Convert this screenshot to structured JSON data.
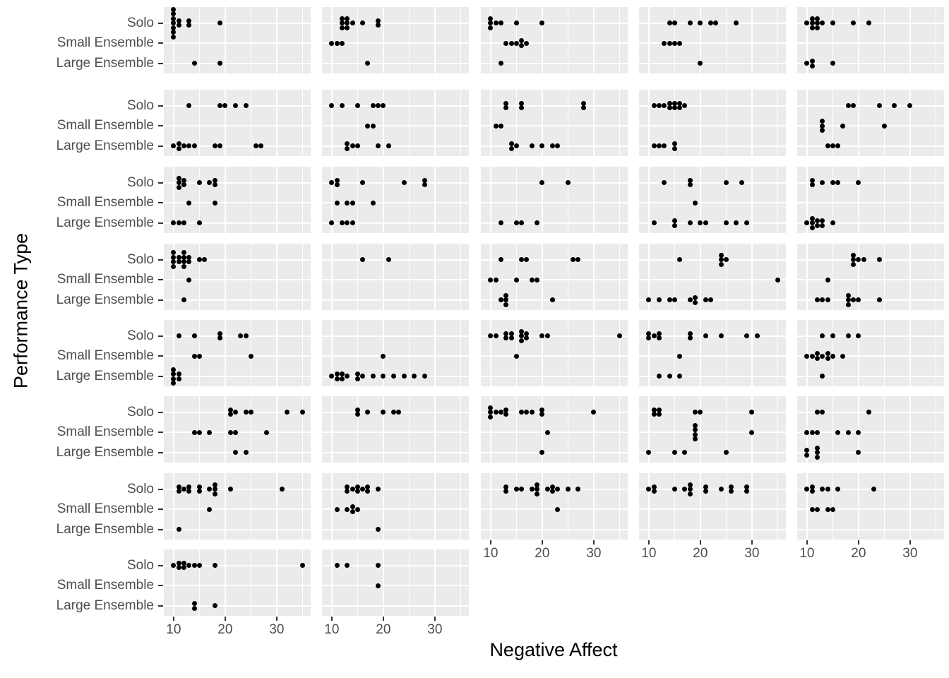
{
  "axes": {
    "x_title": "Negative Affect",
    "y_title": "Performance Type",
    "x_tick_labels": [
      "10",
      "20",
      "30"
    ],
    "x_ticks": [
      10,
      20,
      30
    ],
    "x_minor_ticks": [
      15,
      25,
      35
    ],
    "y_categories": [
      "Solo",
      "Small Ensemble",
      "Large Ensemble"
    ],
    "x_domain": [
      8.1,
      36.6
    ]
  },
  "style": {
    "panel_bg": "#EBEBEB",
    "grid_color": "#FFFFFF",
    "point_color": "#000000",
    "tick_label_color": "#4D4D4D",
    "axis_title_color": "#000000"
  },
  "chart_data": {
    "type": "scatter",
    "title": "",
    "xlabel": "Negative Affect",
    "ylabel": "Performance Type",
    "x_ticks": [
      10,
      20,
      30
    ],
    "y_categories": [
      "Solo",
      "Small Ensemble",
      "Large Ensemble"
    ],
    "facet_grid": {
      "rows": 8,
      "cols": 5,
      "panels_in_last_row": 2,
      "legend": "none",
      "strip_labels": "none"
    },
    "facets": [
      {
        "row": 1,
        "col": 1,
        "solo": [
          10,
          10,
          10,
          10,
          10,
          10,
          10,
          11,
          11,
          13,
          13,
          19
        ],
        "small": [],
        "large": [
          14,
          19
        ]
      },
      {
        "row": 1,
        "col": 2,
        "solo": [
          12,
          12,
          12,
          13,
          13,
          13,
          14,
          16,
          19,
          19
        ],
        "small": [
          10,
          11,
          12
        ],
        "large": [
          17
        ]
      },
      {
        "row": 1,
        "col": 3,
        "solo": [
          10,
          10,
          10,
          11,
          12,
          15,
          20
        ],
        "small": [
          13,
          14,
          15,
          16,
          16,
          17
        ],
        "large": [
          12
        ]
      },
      {
        "row": 1,
        "col": 4,
        "solo": [
          14,
          15,
          18,
          20,
          22,
          23,
          27
        ],
        "small": [
          13,
          14,
          15,
          16
        ],
        "large": [
          20
        ]
      },
      {
        "row": 1,
        "col": 5,
        "solo": [
          10,
          11,
          11,
          11,
          12,
          12,
          12,
          13,
          15,
          19,
          22
        ],
        "small": [],
        "large": [
          10,
          11,
          11,
          15
        ]
      },
      {
        "row": 2,
        "col": 1,
        "solo": [
          13,
          19,
          20,
          22,
          24
        ],
        "small": [],
        "large": [
          10,
          11,
          11,
          12,
          13,
          14,
          18,
          19,
          26,
          27
        ]
      },
      {
        "row": 2,
        "col": 2,
        "solo": [
          10,
          12,
          15,
          18,
          19,
          20
        ],
        "small": [
          17,
          18
        ],
        "large": [
          13,
          13,
          14,
          15,
          19,
          21
        ]
      },
      {
        "row": 2,
        "col": 3,
        "solo": [
          13,
          13,
          16,
          16,
          28,
          28
        ],
        "small": [
          11,
          12
        ],
        "large": [
          14,
          14,
          15,
          18,
          20,
          22,
          23
        ]
      },
      {
        "row": 2,
        "col": 4,
        "solo": [
          11,
          12,
          13,
          14,
          14,
          15,
          15,
          16,
          16,
          17
        ],
        "small": [],
        "large": [
          11,
          12,
          13,
          15,
          15
        ]
      },
      {
        "row": 2,
        "col": 5,
        "solo": [
          18,
          19,
          24,
          27,
          30
        ],
        "small": [
          13,
          13,
          13,
          17,
          25
        ],
        "large": [
          14,
          15,
          16
        ]
      },
      {
        "row": 3,
        "col": 1,
        "solo": [
          11,
          11,
          11,
          12,
          12,
          15,
          17,
          18,
          18
        ],
        "small": [
          13,
          18
        ],
        "large": [
          10,
          11,
          12,
          15
        ]
      },
      {
        "row": 3,
        "col": 2,
        "solo": [
          10,
          11,
          11,
          16,
          24,
          28,
          28
        ],
        "small": [
          11,
          13,
          14,
          18
        ],
        "large": [
          10,
          12,
          13,
          14
        ]
      },
      {
        "row": 3,
        "col": 3,
        "solo": [
          20,
          25
        ],
        "small": [],
        "large": [
          12,
          15,
          16,
          19
        ]
      },
      {
        "row": 3,
        "col": 4,
        "solo": [
          13,
          18,
          18,
          25,
          28
        ],
        "small": [
          19
        ],
        "large": [
          11,
          15,
          15,
          18,
          20,
          21,
          25,
          27,
          29
        ]
      },
      {
        "row": 3,
        "col": 5,
        "solo": [
          11,
          11,
          13,
          15,
          16,
          20
        ],
        "small": [],
        "large": [
          10,
          11,
          11,
          11,
          12,
          12,
          13,
          13,
          15
        ]
      },
      {
        "row": 4,
        "col": 1,
        "solo": [
          10,
          10,
          10,
          10,
          11,
          11,
          12,
          12,
          12,
          12,
          13,
          13,
          15,
          16
        ],
        "small": [
          13
        ],
        "large": [
          12
        ]
      },
      {
        "row": 4,
        "col": 2,
        "solo": [
          16,
          21
        ],
        "small": [],
        "large": []
      },
      {
        "row": 4,
        "col": 3,
        "solo": [
          12,
          16,
          17,
          26,
          27
        ],
        "small": [
          10,
          11,
          15,
          18,
          19
        ],
        "large": [
          12,
          13,
          13,
          13,
          22
        ]
      },
      {
        "row": 4,
        "col": 4,
        "solo": [
          16,
          24,
          24,
          24,
          25
        ],
        "small": [
          35
        ],
        "large": [
          10,
          12,
          14,
          15,
          18,
          19,
          19,
          21,
          22
        ]
      },
      {
        "row": 4,
        "col": 5,
        "solo": [
          19,
          19,
          19,
          20,
          21,
          24
        ],
        "small": [
          14
        ],
        "large": [
          12,
          13,
          14,
          18,
          18,
          18,
          19,
          20,
          24
        ]
      },
      {
        "row": 5,
        "col": 1,
        "solo": [
          11,
          14,
          19,
          19,
          23,
          24
        ],
        "small": [
          14,
          15,
          25
        ],
        "large": [
          10,
          10,
          10,
          10,
          11,
          11
        ]
      },
      {
        "row": 5,
        "col": 2,
        "solo": [],
        "small": [
          20
        ],
        "large": [
          10,
          11,
          11,
          12,
          12,
          13,
          15,
          15,
          16,
          18,
          20,
          22,
          24,
          26,
          28
        ]
      },
      {
        "row": 5,
        "col": 3,
        "solo": [
          10,
          11,
          13,
          13,
          14,
          14,
          16,
          16,
          16,
          17,
          17,
          20,
          21,
          35
        ],
        "small": [
          15
        ],
        "large": []
      },
      {
        "row": 5,
        "col": 4,
        "solo": [
          10,
          10,
          11,
          12,
          12,
          18,
          18,
          21,
          24,
          29,
          31
        ],
        "small": [
          16
        ],
        "large": [
          12,
          14,
          16
        ]
      },
      {
        "row": 5,
        "col": 5,
        "solo": [
          13,
          15,
          18,
          20
        ],
        "small": [
          10,
          11,
          12,
          12,
          13,
          14,
          14,
          15,
          17
        ],
        "large": [
          13
        ]
      },
      {
        "row": 6,
        "col": 1,
        "solo": [
          21,
          21,
          22,
          24,
          25,
          32,
          35
        ],
        "small": [
          14,
          15,
          17,
          21,
          22,
          28
        ],
        "large": [
          22,
          24
        ]
      },
      {
        "row": 6,
        "col": 2,
        "solo": [
          15,
          15,
          17,
          20,
          22,
          23
        ],
        "small": [],
        "large": []
      },
      {
        "row": 6,
        "col": 3,
        "solo": [
          10,
          10,
          10,
          11,
          12,
          13,
          13,
          16,
          17,
          18,
          20,
          20,
          30
        ],
        "small": [
          21
        ],
        "large": [
          20
        ]
      },
      {
        "row": 6,
        "col": 4,
        "solo": [
          11,
          11,
          12,
          12,
          19,
          20,
          30
        ],
        "small": [
          19,
          19,
          19,
          19,
          30
        ],
        "large": [
          10,
          15,
          17,
          25
        ]
      },
      {
        "row": 6,
        "col": 5,
        "solo": [
          12,
          13,
          22
        ],
        "small": [
          10,
          11,
          12,
          16,
          18,
          20
        ],
        "large": [
          10,
          10,
          12,
          12,
          12,
          20
        ]
      },
      {
        "row": 7,
        "col": 1,
        "solo": [
          11,
          11,
          12,
          13,
          13,
          15,
          15,
          17,
          18,
          18,
          18,
          21,
          31
        ],
        "small": [
          17
        ],
        "large": [
          11
        ]
      },
      {
        "row": 7,
        "col": 2,
        "solo": [
          13,
          13,
          14,
          15,
          15,
          16,
          17,
          17,
          19
        ],
        "small": [
          11,
          13,
          14,
          14,
          15
        ],
        "large": [
          19
        ]
      },
      {
        "row": 7,
        "col": 3,
        "solo": [
          13,
          13,
          15,
          16,
          18,
          19,
          19,
          19,
          21,
          22,
          22,
          23,
          25,
          27
        ],
        "small": [
          23
        ],
        "large": []
      },
      {
        "row": 7,
        "col": 4,
        "solo": [
          10,
          11,
          11,
          15,
          17,
          18,
          18,
          18,
          21,
          21,
          24,
          26,
          26,
          29,
          29
        ],
        "small": [],
        "large": []
      },
      {
        "row": 7,
        "col": 5,
        "solo": [
          10,
          11,
          11,
          13,
          14,
          16,
          23
        ],
        "small": [
          11,
          12,
          14,
          15
        ],
        "large": []
      },
      {
        "row": 8,
        "col": 1,
        "solo": [
          10,
          11,
          11,
          12,
          12,
          13,
          14,
          15,
          18,
          35
        ],
        "small": [],
        "large": [
          14,
          14,
          18
        ]
      },
      {
        "row": 8,
        "col": 2,
        "solo": [
          11,
          13,
          19
        ],
        "small": [
          19
        ],
        "large": []
      }
    ]
  }
}
